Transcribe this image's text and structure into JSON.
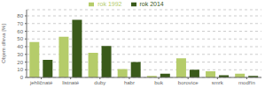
{
  "chart_data": {
    "type": "bar",
    "categories": [
      "jehličnaté",
      "listnaté",
      "duby",
      "habr",
      "buk",
      "borovice",
      "smrk",
      "modřín"
    ],
    "series": [
      {
        "name": "rok 1992",
        "color": "#b5cc6a",
        "values": [
          46,
          53,
          32,
          11,
          2,
          25,
          8,
          5
        ]
      },
      {
        "name": "rok 2014",
        "color": "#3a5a1a",
        "values": [
          23,
          75,
          41,
          20,
          5,
          10,
          3,
          2
        ]
      }
    ],
    "ylabel": "Objem dřeva [%]",
    "ylim": [
      0,
      88
    ],
    "yticks": [
      0,
      10,
      20,
      30,
      40,
      50,
      60,
      70,
      80
    ],
    "grid": true,
    "legend": "upper center"
  }
}
